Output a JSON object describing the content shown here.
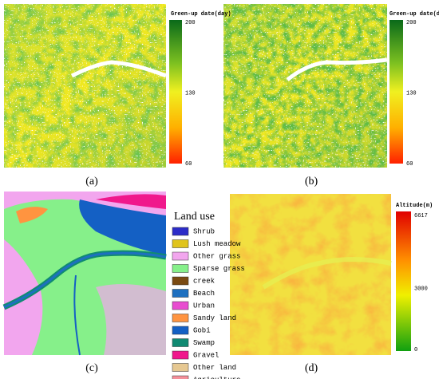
{
  "panels": [
    {
      "caption": "(a)",
      "colorbar": {
        "title": "Green-up date(day)",
        "ticks": [
          200,
          130,
          60
        ]
      }
    },
    {
      "caption": "(b)",
      "colorbar": {
        "title": "Green-up date(day)",
        "ticks": [
          200,
          130,
          60
        ]
      }
    },
    {
      "caption": "(c)",
      "legend": {
        "title": "Land use",
        "items": [
          {
            "label": "Shrub",
            "color": "#2c2cc8"
          },
          {
            "label": "Lush meadow",
            "color": "#e0c41c"
          },
          {
            "label": "Other grass",
            "color": "#f2a6ee"
          },
          {
            "label": "Sparse grass",
            "color": "#86f08a"
          },
          {
            "label": "creek",
            "color": "#7a4a12"
          },
          {
            "label": "Beach",
            "color": "#1e70c0"
          },
          {
            "label": "Urban",
            "color": "#e84cd0"
          },
          {
            "label": "Sandy land",
            "color": "#ff9440"
          },
          {
            "label": "Gobi",
            "color": "#1460c4"
          },
          {
            "label": "Swamp",
            "color": "#108a72"
          },
          {
            "label": "Gravel",
            "color": "#f0188c"
          },
          {
            "label": "Other land",
            "color": "#e6c892"
          },
          {
            "label": "Agriculture",
            "color": "#f4909a"
          }
        ]
      }
    },
    {
      "caption": "(d)",
      "colorbar": {
        "title": "Altitude(m)",
        "ticks": [
          6617,
          3000,
          0
        ]
      }
    }
  ]
}
